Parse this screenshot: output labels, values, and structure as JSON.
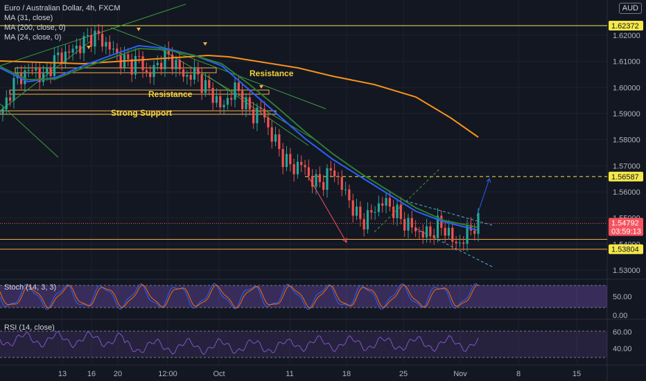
{
  "legend": {
    "title": "Euro / Australian Dollar, 4h, FXCM",
    "ma31": "MA (31, close)",
    "ma200": "MA (200, close, 0)",
    "ma24": "MA (24, close, 0)"
  },
  "currency_badge": "AUD",
  "stoch_legend": "Stoch (14, 3, 3)",
  "rsi_legend": "RSI (14, close)",
  "chart_data": {
    "type": "candlestick",
    "symbol": "Euro / Australian Dollar",
    "timeframe": "4h",
    "source": "FXCM",
    "y_ticks": [
      "1.62000",
      "1.61000",
      "1.60000",
      "1.59000",
      "1.58000",
      "1.57000",
      "1.56000",
      "1.55000",
      "1.54000",
      "1.53000"
    ],
    "x_ticks": [
      "13",
      "16",
      "20",
      "12:00",
      "Oct",
      "11",
      "18",
      "25",
      "Nov",
      "8",
      "15"
    ],
    "price_labels": [
      {
        "value": "1.62372",
        "color": "#f5e84a",
        "text_color": "#131722"
      },
      {
        "value": "1.56587",
        "color": "#f5e84a",
        "text_color": "#131722"
      },
      {
        "value": "1.54792",
        "color": "#f7525f",
        "text_color": "#ffffff",
        "sub": "03:59:13"
      },
      {
        "value": "1.53804",
        "color": "#f5e84a",
        "text_color": "#131722"
      }
    ],
    "annotations": [
      "Resistance",
      "Resistance",
      "Strong Support"
    ],
    "stoch_ticks": [
      "50.00",
      "0.00"
    ],
    "rsi_ticks": [
      "60.00",
      "40.00"
    ],
    "close_path": [
      1.59,
      1.6,
      1.604,
      1.606,
      1.607,
      1.603,
      1.609,
      1.612,
      1.613,
      1.615,
      1.617,
      1.62,
      1.619,
      1.616,
      1.613,
      1.61,
      1.609,
      1.611,
      1.604,
      1.608,
      1.612,
      1.611,
      1.606,
      1.604,
      1.606,
      1.6,
      1.598,
      1.592,
      1.596,
      1.6,
      1.594,
      1.589,
      1.592,
      1.584,
      1.578,
      1.572,
      1.569,
      1.571,
      1.566,
      1.563,
      1.565,
      1.569,
      1.562,
      1.557,
      1.55,
      1.549,
      1.553,
      1.556,
      1.555,
      1.551,
      1.548,
      1.546,
      1.544,
      1.544,
      1.547,
      1.546,
      1.54,
      1.541,
      1.546,
      1.548
    ]
  }
}
